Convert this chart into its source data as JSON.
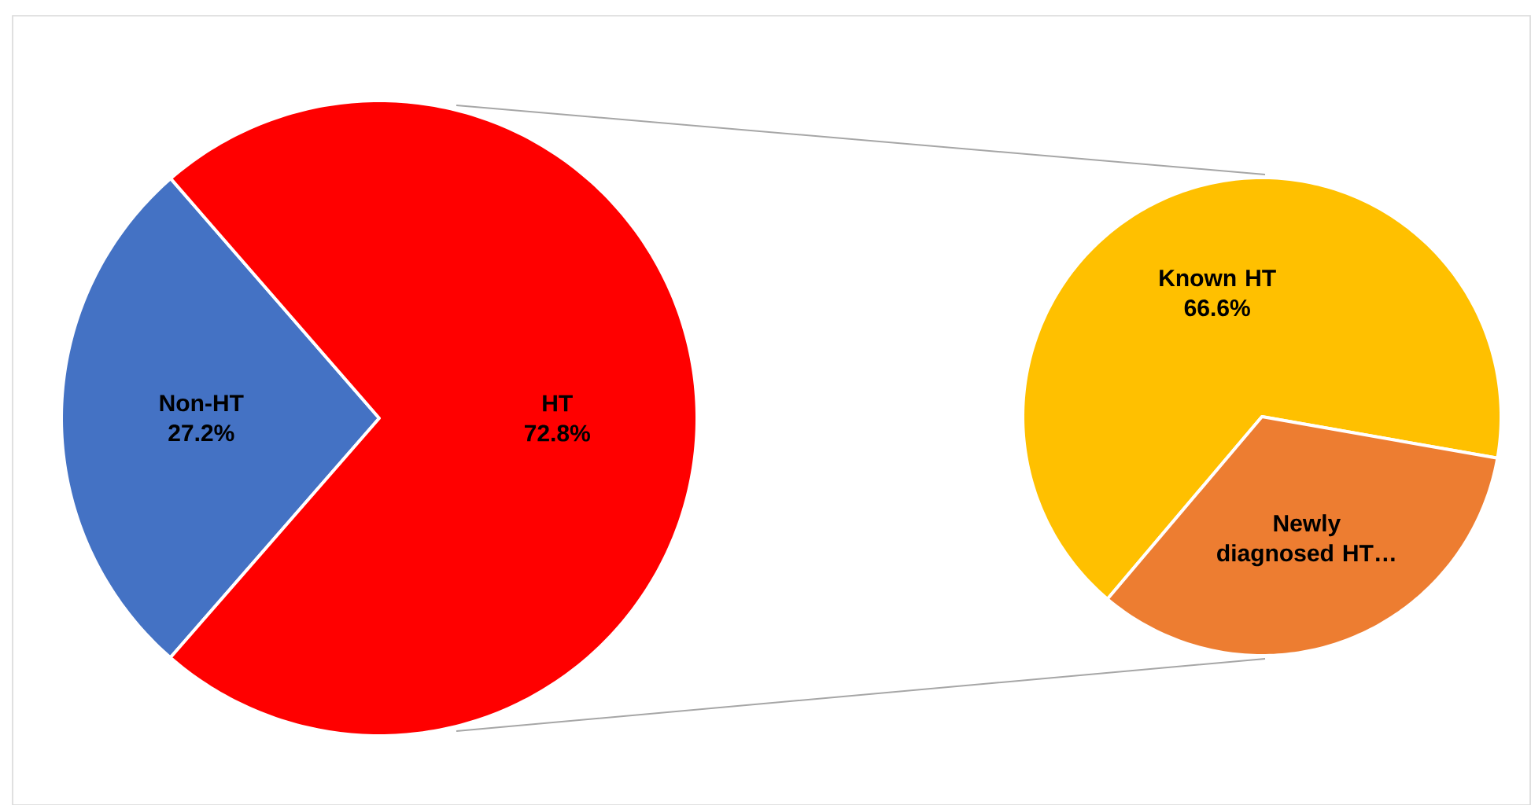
{
  "chart_data": [
    {
      "type": "pie",
      "categories": [
        "Non-HT",
        "HT"
      ],
      "values": [
        27.2,
        72.8
      ],
      "colors": [
        "#4472c4",
        "#ff0000"
      ],
      "value_labels": [
        "27.2%",
        "72.8%"
      ]
    },
    {
      "type": "pie",
      "categories": [
        "Known HT",
        "Newly diagnosed HT…"
      ],
      "values": [
        66.6,
        33.4
      ],
      "colors": [
        "#ffc000",
        "#ed7d31"
      ],
      "value_labels": [
        "66.6%",
        null
      ]
    }
  ]
}
